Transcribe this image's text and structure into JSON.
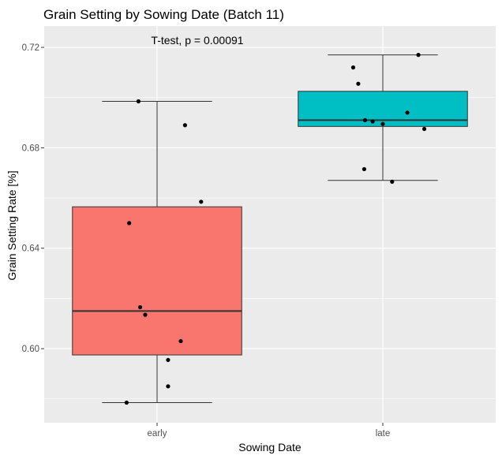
{
  "chart_data": {
    "type": "boxplot",
    "title": "Grain Setting by Sowing Date (Batch 11)",
    "xlabel": "Sowing Date",
    "ylabel": "Grain Setting Rate [%]",
    "annotation": "T-test, p = 0.00091",
    "categories": [
      "early",
      "late"
    ],
    "ylim": [
      0.5705,
      0.7285
    ],
    "yticks": [
      0.6,
      0.64,
      0.68,
      0.72
    ],
    "ytick_labels": [
      "0.60",
      "0.64",
      "0.68",
      "0.72"
    ],
    "grid": true,
    "panel_background": "#ebebeb",
    "boxes": [
      {
        "category": "early",
        "color": "#f8766d",
        "whisker_low": 0.5785,
        "q1": 0.5975,
        "median": 0.615,
        "q3": 0.6565,
        "whisker_high": 0.6985
      },
      {
        "category": "late",
        "color": "#00bfc4",
        "whisker_low": 0.667,
        "q1": 0.6885,
        "median": 0.691,
        "q3": 0.7025,
        "whisker_high": 0.717
      }
    ],
    "points": [
      {
        "category": "early",
        "jitter": -0.36,
        "y": 0.5785
      },
      {
        "category": "early",
        "jitter": -0.22,
        "y": 0.6985
      },
      {
        "category": "early",
        "jitter": -0.33,
        "y": 0.65
      },
      {
        "category": "early",
        "jitter": -0.2,
        "y": 0.6165
      },
      {
        "category": "early",
        "jitter": -0.14,
        "y": 0.6135
      },
      {
        "category": "early",
        "jitter": 0.13,
        "y": 0.5955
      },
      {
        "category": "early",
        "jitter": 0.13,
        "y": 0.585
      },
      {
        "category": "early",
        "jitter": 0.28,
        "y": 0.603
      },
      {
        "category": "early",
        "jitter": 0.33,
        "y": 0.689
      },
      {
        "category": "early",
        "jitter": 0.52,
        "y": 0.6585
      },
      {
        "category": "late",
        "jitter": -0.35,
        "y": 0.712
      },
      {
        "category": "late",
        "jitter": -0.29,
        "y": 0.7055
      },
      {
        "category": "late",
        "jitter": -0.21,
        "y": 0.691
      },
      {
        "category": "late",
        "jitter": -0.12,
        "y": 0.6905
      },
      {
        "category": "late",
        "jitter": -0.22,
        "y": 0.6715
      },
      {
        "category": "late",
        "jitter": 0.0,
        "y": 0.6895
      },
      {
        "category": "late",
        "jitter": 0.11,
        "y": 0.6665
      },
      {
        "category": "late",
        "jitter": 0.29,
        "y": 0.694
      },
      {
        "category": "late",
        "jitter": 0.42,
        "y": 0.717
      },
      {
        "category": "late",
        "jitter": 0.49,
        "y": 0.6875
      }
    ]
  }
}
